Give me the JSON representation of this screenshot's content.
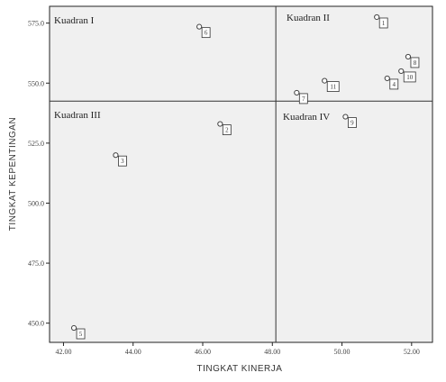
{
  "chart_data": {
    "type": "scatter",
    "xlabel": "TINGKAT KINERJA",
    "ylabel": "TINGKAT KEPENTINGAN",
    "xlim": [
      41.6,
      52.6
    ],
    "ylim": [
      442,
      582
    ],
    "x_ticks": [
      42.0,
      44.0,
      46.0,
      48.0,
      50.0,
      52.0
    ],
    "x_tick_labels": [
      "42.00",
      "44.00",
      "46.00",
      "48.00",
      "50.00",
      "52.00"
    ],
    "y_ticks": [
      450,
      475,
      500,
      525,
      550,
      575
    ],
    "y_tick_labels": [
      "450.0",
      "475.0",
      "500.0",
      "525.0",
      "550.0",
      "575.0"
    ],
    "divider_x": 48.1,
    "divider_y": 542.5,
    "grid": false,
    "quadrants": [
      {
        "name": "Kuadran I",
        "position": "top-left"
      },
      {
        "name": "Kuadran II",
        "position": "top-right"
      },
      {
        "name": "Kuadran III",
        "position": "bottom-left"
      },
      {
        "name": "Kuadran IV",
        "position": "bottom-right"
      }
    ],
    "points": [
      {
        "label": "1",
        "x": 51.0,
        "y": 577.5
      },
      {
        "label": "2",
        "x": 46.5,
        "y": 533.0
      },
      {
        "label": "3",
        "x": 43.5,
        "y": 520.0
      },
      {
        "label": "4",
        "x": 51.3,
        "y": 552.0
      },
      {
        "label": "5",
        "x": 42.3,
        "y": 448.0
      },
      {
        "label": "6",
        "x": 45.9,
        "y": 573.5
      },
      {
        "label": "7",
        "x": 48.7,
        "y": 546.0
      },
      {
        "label": "8",
        "x": 51.9,
        "y": 561.0
      },
      {
        "label": "9",
        "x": 50.1,
        "y": 536.0
      },
      {
        "label": "10",
        "x": 51.7,
        "y": 555.0
      },
      {
        "label": "11",
        "x": 49.5,
        "y": 551.0
      }
    ]
  },
  "colors": {
    "plot_background": "#f0f0f0",
    "frame": "#222222",
    "divider": "#333333",
    "marker_stroke": "#444444"
  }
}
